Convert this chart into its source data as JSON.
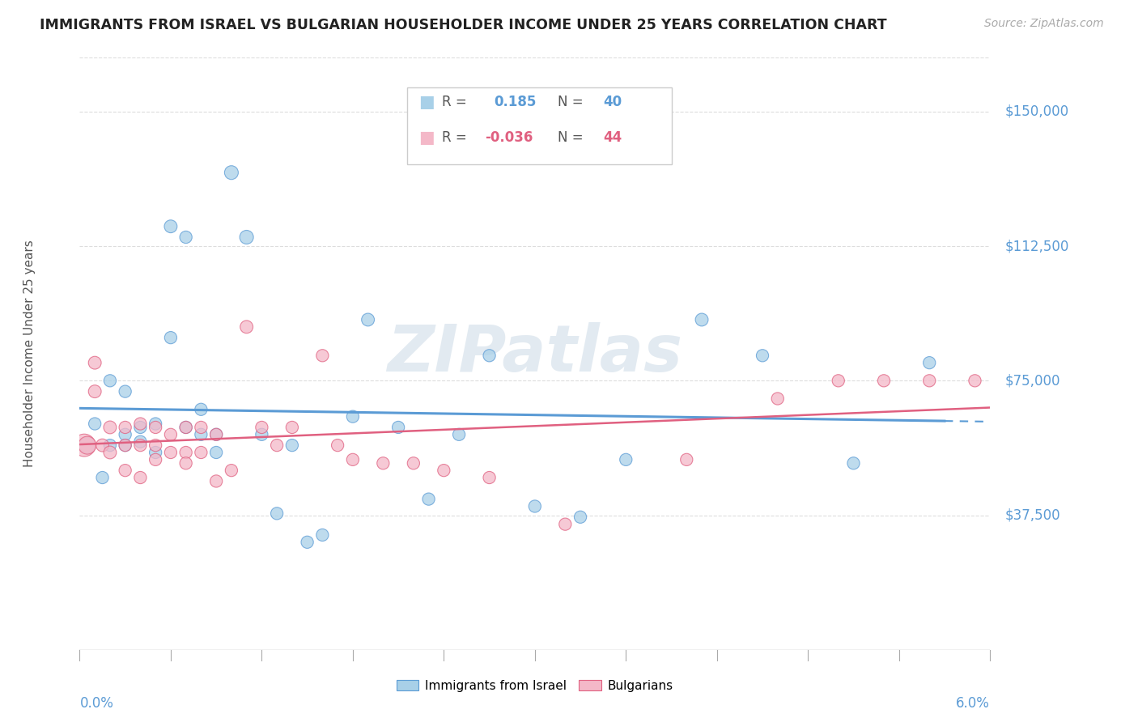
{
  "title": "IMMIGRANTS FROM ISRAEL VS BULGARIAN HOUSEHOLDER INCOME UNDER 25 YEARS CORRELATION CHART",
  "source": "Source: ZipAtlas.com",
  "ylabel": "Householder Income Under 25 years",
  "xmin": 0.0,
  "xmax": 0.06,
  "ymin": 0,
  "ymax": 165000,
  "blue_color": "#a8d0e8",
  "pink_color": "#f4b8c8",
  "line_blue": "#5b9bd5",
  "line_pink": "#e06080",
  "blue_scatter_x": [
    0.0005,
    0.001,
    0.0015,
    0.002,
    0.002,
    0.003,
    0.003,
    0.003,
    0.004,
    0.004,
    0.005,
    0.005,
    0.006,
    0.006,
    0.007,
    0.007,
    0.008,
    0.008,
    0.009,
    0.009,
    0.01,
    0.011,
    0.012,
    0.013,
    0.014,
    0.015,
    0.016,
    0.018,
    0.019,
    0.021,
    0.023,
    0.025,
    0.027,
    0.03,
    0.033,
    0.036,
    0.041,
    0.045,
    0.051,
    0.056
  ],
  "blue_scatter_y": [
    57000,
    63000,
    48000,
    57000,
    75000,
    60000,
    57000,
    72000,
    62000,
    58000,
    55000,
    63000,
    118000,
    87000,
    115000,
    62000,
    60000,
    67000,
    60000,
    55000,
    133000,
    115000,
    60000,
    38000,
    57000,
    30000,
    32000,
    65000,
    92000,
    62000,
    42000,
    60000,
    82000,
    40000,
    37000,
    53000,
    92000,
    82000,
    52000,
    80000
  ],
  "blue_scatter_size": [
    200,
    120,
    120,
    120,
    120,
    120,
    120,
    120,
    120,
    120,
    120,
    120,
    130,
    120,
    120,
    120,
    120,
    120,
    120,
    120,
    150,
    150,
    120,
    120,
    120,
    120,
    120,
    120,
    130,
    120,
    120,
    120,
    120,
    120,
    120,
    120,
    130,
    120,
    120,
    120
  ],
  "pink_scatter_x": [
    0.0003,
    0.0005,
    0.001,
    0.001,
    0.0015,
    0.002,
    0.002,
    0.003,
    0.003,
    0.003,
    0.004,
    0.004,
    0.004,
    0.005,
    0.005,
    0.005,
    0.006,
    0.006,
    0.007,
    0.007,
    0.007,
    0.008,
    0.008,
    0.009,
    0.009,
    0.01,
    0.011,
    0.012,
    0.013,
    0.014,
    0.016,
    0.017,
    0.018,
    0.02,
    0.022,
    0.024,
    0.027,
    0.032,
    0.04,
    0.046,
    0.05,
    0.053,
    0.056,
    0.059
  ],
  "pink_scatter_y": [
    57000,
    57000,
    72000,
    80000,
    57000,
    62000,
    55000,
    57000,
    62000,
    50000,
    57000,
    63000,
    48000,
    57000,
    53000,
    62000,
    55000,
    60000,
    55000,
    52000,
    62000,
    62000,
    55000,
    60000,
    47000,
    50000,
    90000,
    62000,
    57000,
    62000,
    82000,
    57000,
    53000,
    52000,
    52000,
    50000,
    48000,
    35000,
    53000,
    70000,
    75000,
    75000,
    75000,
    75000
  ],
  "pink_scatter_size": [
    400,
    250,
    130,
    130,
    130,
    130,
    130,
    120,
    120,
    120,
    120,
    120,
    120,
    120,
    120,
    120,
    120,
    120,
    120,
    120,
    120,
    120,
    120,
    120,
    120,
    120,
    130,
    120,
    120,
    120,
    120,
    120,
    120,
    120,
    120,
    120,
    120,
    120,
    120,
    120,
    120,
    120,
    120,
    120
  ],
  "ytick_vals": [
    37500,
    75000,
    112500,
    150000
  ],
  "ytick_labels": [
    "$37,500",
    "$75,000",
    "$112,500",
    "$150,000"
  ],
  "grid_color": "#dddddd",
  "watermark_color": "#d0dde8",
  "blue_r": "0.185",
  "blue_n": "40",
  "pink_r": "-0.036",
  "pink_n": "44"
}
